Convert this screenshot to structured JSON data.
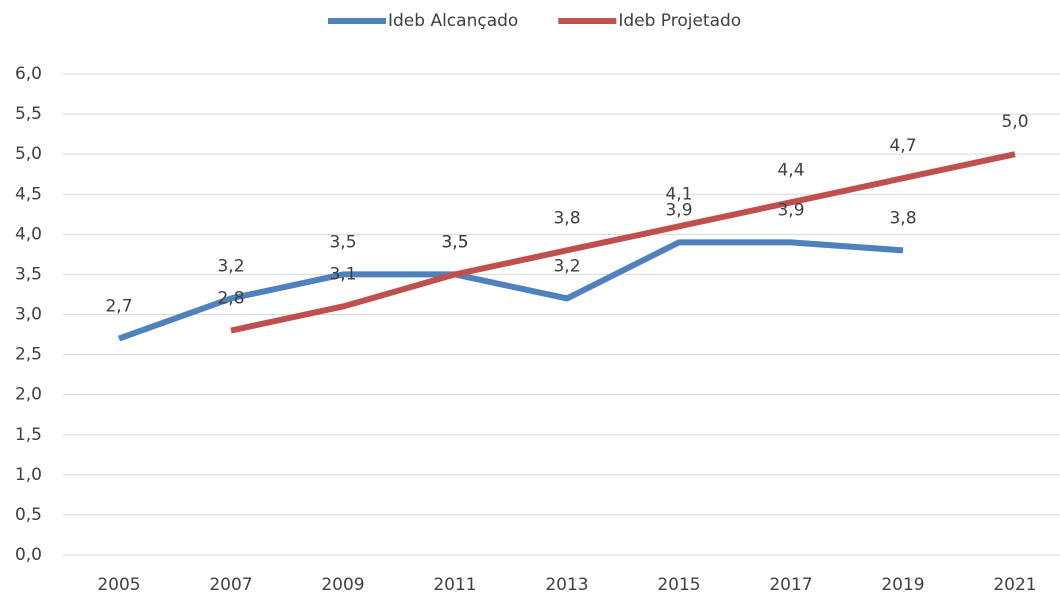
{
  "chart_data": {
    "type": "line",
    "categories": [
      "2005",
      "2007",
      "2009",
      "2011",
      "2013",
      "2015",
      "2017",
      "2019",
      "2021"
    ],
    "series": [
      {
        "name": "Ideb Alcançado",
        "color": "#4f81bd",
        "values": [
          2.7,
          3.2,
          3.5,
          3.5,
          3.2,
          3.9,
          3.9,
          3.8,
          null
        ],
        "value_labels": [
          "2,7",
          "3,2",
          "3,5",
          "3,5",
          "3,2",
          "3,9",
          "3,9",
          "3,8",
          null
        ]
      },
      {
        "name": "Ideb Projetado",
        "color": "#c0504d",
        "values": [
          null,
          2.8,
          3.1,
          3.5,
          3.8,
          4.1,
          4.4,
          4.7,
          5.0
        ],
        "value_labels": [
          null,
          "2,8",
          "3,1",
          "3,5",
          "3,8",
          "4,1",
          "4,4",
          "4,7",
          "5,0"
        ]
      }
    ],
    "ylim": [
      0,
      6
    ],
    "yticks": [
      {
        "value": 0,
        "label": "0,0"
      },
      {
        "value": 0.5,
        "label": "0,5"
      },
      {
        "value": 1,
        "label": "1,0"
      },
      {
        "value": 1.5,
        "label": "1,5"
      },
      {
        "value": 2,
        "label": "2,0"
      },
      {
        "value": 2.5,
        "label": "2,5"
      },
      {
        "value": 3,
        "label": "3,0"
      },
      {
        "value": 3.5,
        "label": "3,5"
      },
      {
        "value": 4,
        "label": "4,0"
      },
      {
        "value": 4.5,
        "label": "4,5"
      },
      {
        "value": 5,
        "label": "5,0"
      },
      {
        "value": 5.5,
        "label": "5,5"
      },
      {
        "value": 6,
        "label": "6,0"
      }
    ],
    "grid": true,
    "legend": "top"
  }
}
